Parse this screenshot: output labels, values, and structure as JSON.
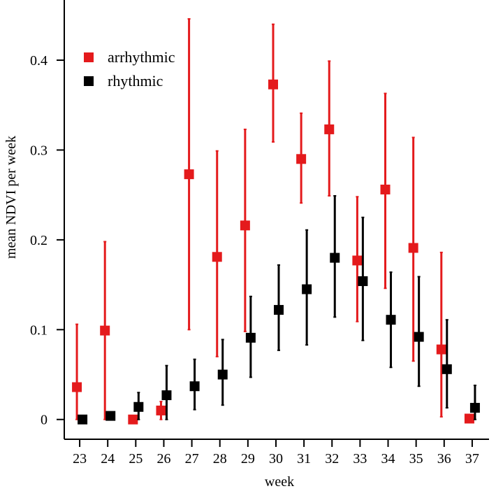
{
  "chart_data": {
    "type": "scatter",
    "xlabel": "week",
    "ylabel": "mean NDVI per week",
    "x": [
      23,
      24,
      25,
      26,
      27,
      28,
      29,
      30,
      31,
      32,
      33,
      34,
      35,
      36,
      37
    ],
    "x_tick_labels": [
      "23",
      "24",
      "25",
      "26",
      "27",
      "28",
      "29",
      "30",
      "31",
      "32",
      "33",
      "34",
      "35",
      "36",
      "37"
    ],
    "y_ticks": [
      0,
      0.1,
      0.2,
      0.3,
      0.4
    ],
    "y_tick_labels": [
      "0",
      "0.1",
      "0.2",
      "0.3",
      "0.4"
    ],
    "xlim": [
      22.45,
      37.6
    ],
    "ylim": [
      -0.022,
      0.467
    ],
    "legend_position": "top-left",
    "series": [
      {
        "name": "arrhythmic",
        "color": "#e41a1c",
        "marker": "square",
        "values": [
          0.036,
          0.099,
          0.0,
          0.01,
          0.273,
          0.181,
          0.216,
          0.373,
          0.29,
          0.323,
          0.177,
          0.256,
          0.191,
          0.078,
          0.001
        ],
        "error_low": [
          0.0,
          0.0,
          0.0,
          0.0,
          0.1,
          0.07,
          0.098,
          0.309,
          0.241,
          0.249,
          0.109,
          0.146,
          0.065,
          0.003,
          0.0
        ],
        "error_high": [
          0.106,
          0.198,
          0.0,
          0.02,
          0.446,
          0.299,
          0.323,
          0.44,
          0.341,
          0.399,
          0.248,
          0.363,
          0.314,
          0.186,
          0.002
        ]
      },
      {
        "name": "rhythmic",
        "color": "#000000",
        "marker": "square",
        "values": [
          0.0,
          0.004,
          0.014,
          0.027,
          0.037,
          0.05,
          0.091,
          0.122,
          0.145,
          0.18,
          0.154,
          0.111,
          0.092,
          0.056,
          0.013
        ],
        "error_low": [
          0.0,
          0.0,
          0.0,
          0.0,
          0.011,
          0.016,
          0.047,
          0.077,
          0.083,
          0.114,
          0.088,
          0.058,
          0.037,
          0.013,
          0.0
        ],
        "error_high": [
          0.0,
          0.008,
          0.03,
          0.06,
          0.067,
          0.089,
          0.137,
          0.172,
          0.211,
          0.249,
          0.225,
          0.164,
          0.159,
          0.111,
          0.038
        ]
      }
    ]
  }
}
